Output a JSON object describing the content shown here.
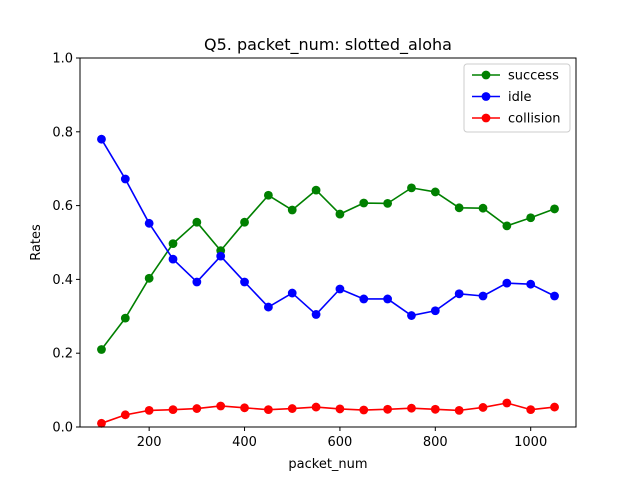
{
  "chart_data": {
    "type": "line",
    "title": "Q5. packet_num: slotted_aloha",
    "xlabel": "packet_num",
    "ylabel": "Rates",
    "xlim": [
      55,
      1095
    ],
    "ylim": [
      0,
      1
    ],
    "x_ticks": [
      200,
      400,
      600,
      800,
      1000
    ],
    "y_ticks": [
      "0.0",
      "0.2",
      "0.4",
      "0.6",
      "0.8",
      "1.0"
    ],
    "grid": false,
    "legend_position": "top-right",
    "x": [
      100,
      150,
      200,
      250,
      300,
      350,
      400,
      450,
      500,
      550,
      600,
      650,
      700,
      750,
      800,
      850,
      900,
      950,
      1000,
      1050
    ],
    "series": [
      {
        "name": "success",
        "color": "#008000",
        "values": [
          0.21,
          0.295,
          0.403,
          0.497,
          0.555,
          0.478,
          0.555,
          0.628,
          0.588,
          0.642,
          0.577,
          0.607,
          0.606,
          0.648,
          0.637,
          0.594,
          0.593,
          0.545,
          0.567,
          0.591
        ]
      },
      {
        "name": "idle",
        "color": "#0000ff",
        "values": [
          0.78,
          0.672,
          0.552,
          0.455,
          0.393,
          0.463,
          0.393,
          0.325,
          0.363,
          0.305,
          0.374,
          0.347,
          0.347,
          0.302,
          0.315,
          0.361,
          0.355,
          0.39,
          0.387,
          0.355
        ]
      },
      {
        "name": "collision",
        "color": "#ff0000",
        "values": [
          0.01,
          0.033,
          0.045,
          0.047,
          0.05,
          0.057,
          0.052,
          0.047,
          0.05,
          0.054,
          0.049,
          0.046,
          0.048,
          0.051,
          0.048,
          0.045,
          0.053,
          0.065,
          0.047,
          0.054
        ]
      }
    ]
  }
}
